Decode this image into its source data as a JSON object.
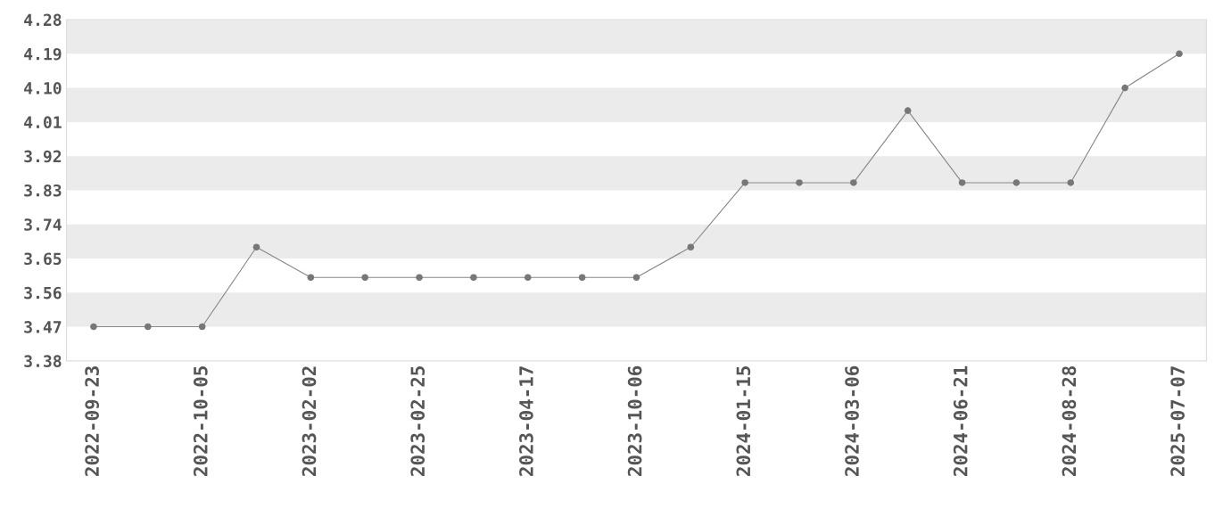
{
  "chart_data": {
    "type": "line",
    "categories": [
      "2022-09-23",
      null,
      "2022-10-05",
      null,
      "2023-02-02",
      null,
      "2023-02-25",
      null,
      "2023-04-17",
      null,
      "2023-10-06",
      null,
      "2024-01-15",
      null,
      "2024-03-06",
      null,
      "2024-06-21",
      null,
      "2024-08-28",
      null,
      "2025-07-07"
    ],
    "series": [
      {
        "color": "#777777",
        "values": [
          3.47,
          3.47,
          3.47,
          3.68,
          3.6,
          3.6,
          3.6,
          3.6,
          3.6,
          3.6,
          3.6,
          3.68,
          3.85,
          3.85,
          3.85,
          4.04,
          3.85,
          3.85,
          3.85,
          4.1,
          4.19
        ]
      }
    ],
    "ylim": [
      3.38,
      4.28
    ],
    "yticks": [
      3.38,
      3.47,
      3.56,
      3.65,
      3.74,
      3.83,
      3.92,
      4.01,
      {
        "value": 4.1,
        "label": "4.10"
      },
      4.19,
      4.28
    ],
    "bands": [
      {
        "axis": "y",
        "from": 3.47,
        "to": 3.56,
        "color": "#ebebeb"
      },
      {
        "axis": "y",
        "from": 3.65,
        "to": 3.74,
        "color": "#ebebeb"
      },
      {
        "axis": "y",
        "from": 3.83,
        "to": 3.92,
        "color": "#ebebeb"
      },
      {
        "axis": "y",
        "from": 4.01,
        "to": 4.1,
        "color": "#ebebeb"
      },
      {
        "axis": "y",
        "from": 4.19,
        "to": 4.28,
        "color": "#ebebeb"
      }
    ],
    "marker": "circle",
    "line_style": "solid",
    "legend": false
  }
}
